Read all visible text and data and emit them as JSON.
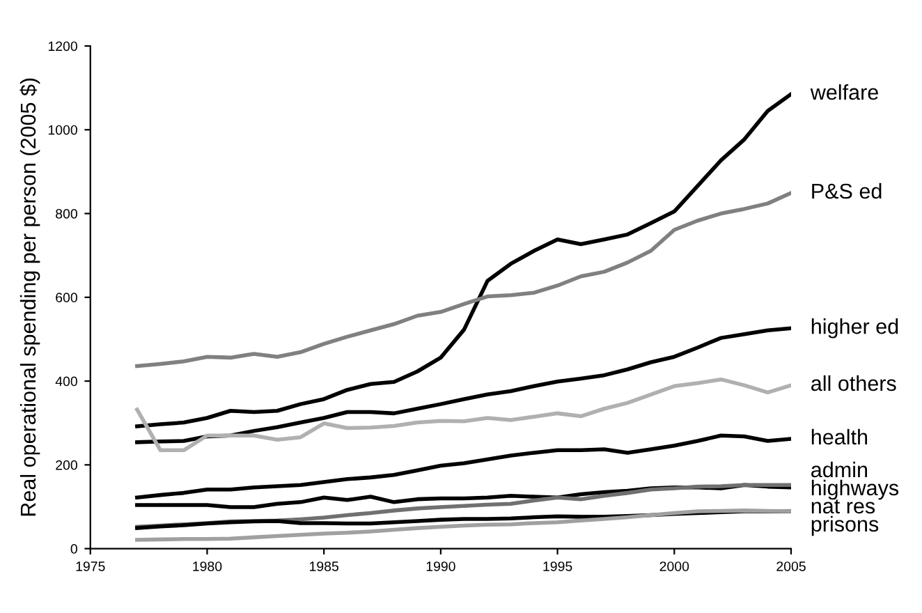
{
  "chart_data": {
    "type": "line",
    "ylabel": "Real operational spending per person (2005 $)",
    "x": [
      1977,
      1978,
      1979,
      1980,
      1981,
      1982,
      1983,
      1984,
      1985,
      1986,
      1987,
      1988,
      1989,
      1990,
      1991,
      1992,
      1993,
      1994,
      1995,
      1996,
      1997,
      1998,
      1999,
      2000,
      2001,
      2002,
      2003,
      2004,
      2005
    ],
    "series": [
      {
        "name": "welfare",
        "color": "#000000",
        "values": [
          292,
          297,
          301,
          312,
          329,
          326,
          329,
          345,
          357,
          379,
          393,
          398,
          423,
          456,
          523,
          639,
          680,
          711,
          738,
          727,
          738,
          750,
          777,
          805,
          866,
          927,
          977,
          1045,
          1085
        ]
      },
      {
        "name": "P&S ed",
        "color": "#808080",
        "values": [
          436,
          441,
          447,
          458,
          456,
          465,
          458,
          469,
          489,
          506,
          521,
          536,
          556,
          565,
          584,
          602,
          605,
          611,
          628,
          650,
          661,
          683,
          711,
          761,
          783,
          800,
          811,
          824,
          849
        ]
      },
      {
        "name": "higher ed",
        "color": "#000000",
        "values": [
          254,
          256,
          257,
          268,
          270,
          281,
          290,
          301,
          312,
          326,
          326,
          323,
          334,
          345,
          357,
          368,
          376,
          388,
          399,
          406,
          414,
          428,
          445,
          458,
          480,
          503,
          512,
          521,
          526
        ]
      },
      {
        "name": "all others",
        "color": "#b0b0b0",
        "values": [
          332,
          235,
          235,
          270,
          270,
          270,
          260,
          266,
          299,
          288,
          289,
          293,
          301,
          305,
          304,
          312,
          307,
          315,
          323,
          316,
          334,
          348,
          368,
          388,
          395,
          404,
          390,
          373,
          390
        ]
      },
      {
        "name": "health",
        "color": "#000000",
        "values": [
          122,
          128,
          133,
          141,
          141,
          146,
          149,
          152,
          159,
          166,
          170,
          176,
          187,
          198,
          204,
          213,
          222,
          229,
          235,
          235,
          237,
          229,
          237,
          246,
          257,
          270,
          268,
          257,
          262
        ]
      },
      {
        "name": "admin",
        "color": "#000000",
        "values": [
          104,
          104,
          104,
          104,
          99,
          99,
          107,
          111,
          122,
          116,
          124,
          111,
          118,
          120,
          120,
          122,
          126,
          124,
          122,
          130,
          135,
          138,
          144,
          146,
          146,
          144,
          152,
          148,
          146
        ]
      },
      {
        "name": "highways",
        "color": "#707070",
        "values": [
          52,
          55,
          58,
          61,
          65,
          66,
          67,
          70,
          74,
          80,
          85,
          91,
          96,
          99,
          102,
          105,
          107,
          115,
          122,
          118,
          126,
          133,
          141,
          144,
          148,
          149,
          152,
          152,
          152
        ]
      },
      {
        "name": "nat res",
        "color": "#000000",
        "values": [
          49,
          53,
          56,
          60,
          63,
          65,
          66,
          61,
          61,
          60,
          60,
          63,
          66,
          69,
          71,
          71,
          72,
          75,
          77,
          76,
          76,
          78,
          80,
          83,
          85,
          87,
          89,
          89,
          89
        ]
      },
      {
        "name": "prisons",
        "color": "#a0a0a0",
        "values": [
          21,
          22,
          23,
          23,
          24,
          27,
          30,
          33,
          36,
          38,
          41,
          45,
          49,
          52,
          55,
          57,
          58,
          61,
          63,
          67,
          71,
          75,
          80,
          85,
          89,
          90,
          91,
          90,
          89
        ]
      }
    ],
    "xlim": [
      1975,
      2005
    ],
    "xticks": [
      1975,
      1980,
      1985,
      1990,
      1995,
      2000,
      2005
    ],
    "ylim": [
      0,
      1200
    ],
    "yticks": [
      0,
      200,
      400,
      600,
      800,
      1000,
      1200
    ],
    "grid": false,
    "legend": false,
    "marker": "none",
    "line_style": "solid"
  }
}
